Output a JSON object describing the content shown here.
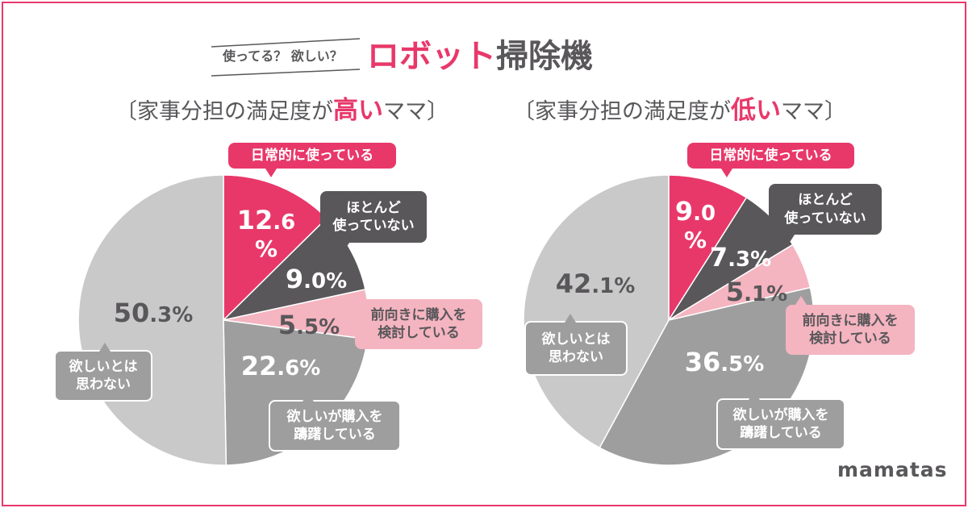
{
  "header": {
    "kicker": "使ってる？ 欲しい？",
    "title_accent": "ロボット",
    "title_rest": "掃除機"
  },
  "colors": {
    "accent": "#e8386a",
    "text": "#59575a"
  },
  "chart_data": [
    {
      "type": "pie",
      "title_parts": {
        "open": "〔",
        "prefix": "家事分担の満足度が",
        "highlight": "高い",
        "suffix": "ママ",
        "close": "〕"
      },
      "unit": "%",
      "slices": [
        {
          "label_lines": [
            "日常的に使っている"
          ],
          "value": 12.6,
          "color": "#e8386a",
          "text_color": "#ffffff"
        },
        {
          "label_lines": [
            "ほとんど",
            "使っていない"
          ],
          "value": 9.0,
          "color": "#59575a",
          "text_color": "#ffffff"
        },
        {
          "label_lines": [
            "前向きに購入を",
            "検討している"
          ],
          "value": 5.5,
          "color": "#f4b4c0",
          "text_color": "#59575a"
        },
        {
          "label_lines": [
            "欲しいが購入を",
            "躊躇している"
          ],
          "value": 22.6,
          "color": "#9e9e9f",
          "text_color": "#ffffff"
        },
        {
          "label_lines": [
            "欲しいとは",
            "思わない"
          ],
          "value": 50.3,
          "color": "#c9c9ca",
          "text_color": "#59575a"
        }
      ]
    },
    {
      "type": "pie",
      "title_parts": {
        "open": "〔",
        "prefix": "家事分担の満足度が",
        "highlight": "低い",
        "suffix": "ママ",
        "close": "〕"
      },
      "unit": "%",
      "slices": [
        {
          "label_lines": [
            "日常的に使っている"
          ],
          "value": 9.0,
          "color": "#e8386a",
          "text_color": "#ffffff"
        },
        {
          "label_lines": [
            "ほとんど",
            "使っていない"
          ],
          "value": 7.3,
          "color": "#59575a",
          "text_color": "#ffffff"
        },
        {
          "label_lines": [
            "前向きに購入を",
            "検討している"
          ],
          "value": 5.1,
          "color": "#f4b4c0",
          "text_color": "#59575a"
        },
        {
          "label_lines": [
            "欲しいが購入を",
            "躊躇している"
          ],
          "value": 36.5,
          "color": "#9e9e9f",
          "text_color": "#ffffff"
        },
        {
          "label_lines": [
            "欲しいとは",
            "思わない"
          ],
          "value": 42.1,
          "color": "#c9c9ca",
          "text_color": "#59575a"
        }
      ]
    }
  ],
  "logo": "mamatas"
}
